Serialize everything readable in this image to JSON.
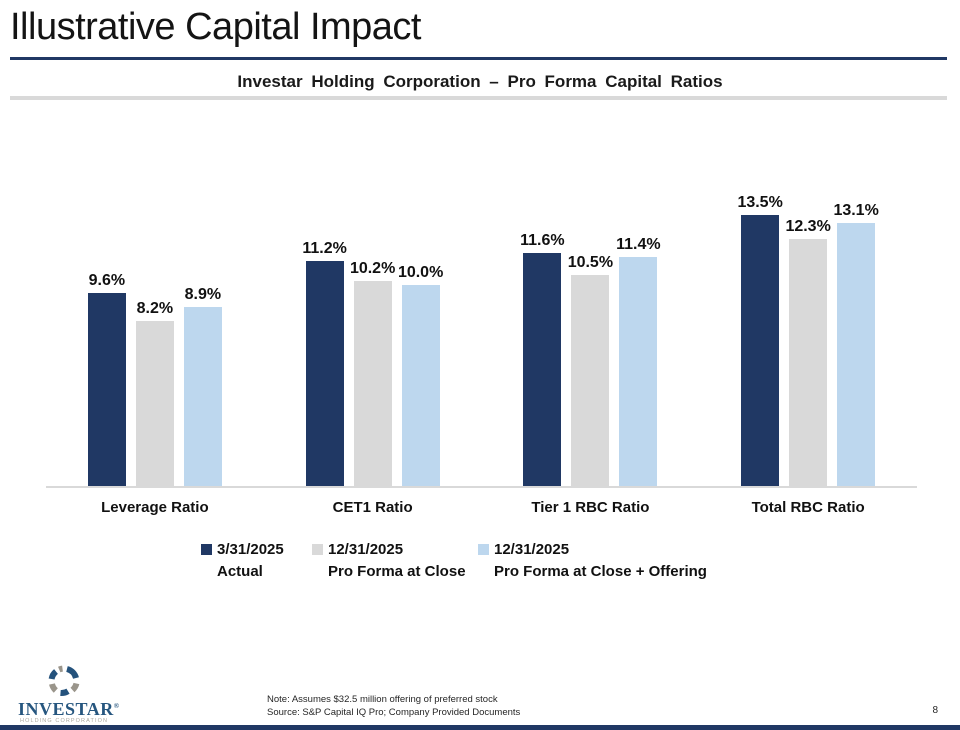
{
  "slide": {
    "title": "Illustrative Capital Impact",
    "page_number": "8"
  },
  "chart_title": "Investar Holding Corporation – Pro Forma Capital Ratios",
  "chart_data": {
    "type": "bar",
    "title": "Investar Holding Corporation – Pro Forma Capital Ratios",
    "categories": [
      "Leverage Ratio",
      "CET1 Ratio",
      "Tier 1 RBC Ratio",
      "Total RBC Ratio"
    ],
    "series": [
      {
        "name": "3/31/2025 Actual",
        "legend_line1": "3/31/2025",
        "legend_line2": "Actual",
        "color": "#203864",
        "values": [
          9.6,
          11.2,
          11.6,
          13.5
        ],
        "labels": [
          "9.6%",
          "11.2%",
          "11.6%",
          "13.5%"
        ]
      },
      {
        "name": "12/31/2025 Pro Forma at Close",
        "legend_line1": "12/31/2025",
        "legend_line2": "Pro Forma at Close",
        "color": "#D9D9D9",
        "values": [
          8.2,
          10.2,
          10.5,
          12.3
        ],
        "labels": [
          "8.2%",
          "10.2%",
          "10.5%",
          "12.3%"
        ]
      },
      {
        "name": "12/31/2025 Pro Forma at Close + Offering",
        "legend_line1": "12/31/2025",
        "legend_line2": "Pro Forma at Close + Offering",
        "color": "#BDD7EE",
        "values": [
          8.9,
          10.0,
          11.4,
          13.1
        ],
        "labels": [
          "8.9%",
          "10.0%",
          "11.4%",
          "13.1%"
        ]
      }
    ],
    "ylim": [
      0,
      17
    ],
    "grid": false,
    "axis_labels_visible": false,
    "data_labels": true,
    "legend_position": "bottom"
  },
  "footer": {
    "note_line1": "Note: Assumes $32.5 million offering of preferred stock",
    "note_line2": "Source: S&P Capital IQ Pro; Company Provided Documents"
  },
  "logo": {
    "name": "INVESTAR",
    "registered": "®",
    "subtext": "HOLDING CORPORATION"
  },
  "colors": {
    "navy": "#203864",
    "gray": "#D9D9D9",
    "light_blue": "#BDD7EE",
    "title_rule": "#203864",
    "subtitle_rule": "#D9D9D9",
    "logo_blue": "#26567F",
    "logo_gray": "#ABA79F"
  }
}
